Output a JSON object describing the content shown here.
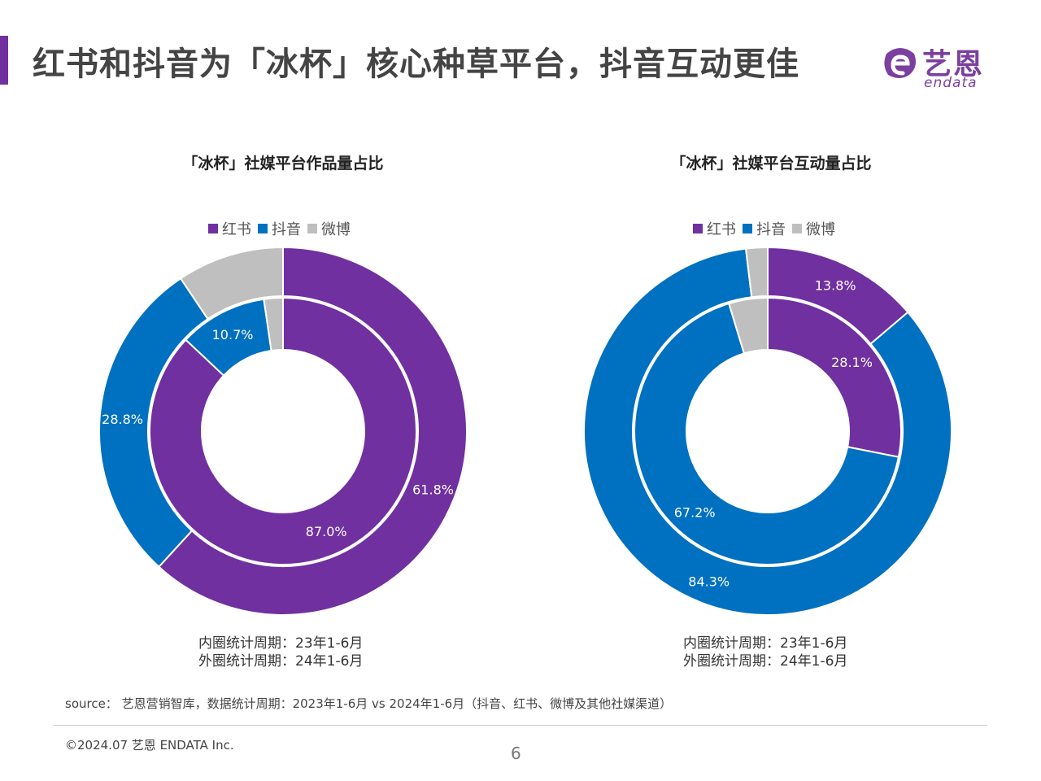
{
  "header": {
    "title": "红书和抖音为「冰杯」核心种草平台，抖音互动更佳",
    "accent_color": "#7030a0"
  },
  "logo": {
    "cn": "艺恩",
    "en": "endata",
    "color": "#7b3fa0"
  },
  "colors": {
    "红书": "#7030a0",
    "抖音": "#0070c0",
    "微博": "#bfbfbf"
  },
  "chart_data": [
    {
      "type": "donut",
      "title": "「冰杯」社媒平台作品量占比",
      "legend": [
        "红书",
        "抖音",
        "微博"
      ],
      "legend_position": "top",
      "series": [
        {
          "name": "内圈",
          "period": "23年1-6月",
          "values": {
            "红书": 87.0,
            "抖音": 10.7,
            "微博": 2.3
          },
          "labels": {
            "红书": "87.0%",
            "抖音": "10.7%"
          }
        },
        {
          "name": "外圈",
          "period": "24年1-6月",
          "values": {
            "红书": 61.8,
            "抖音": 28.8,
            "微博": 9.4
          },
          "labels": {
            "红书": "61.8%",
            "抖音": "28.8%"
          }
        }
      ],
      "period_notes": [
        "内圈统计周期：23年1-6月",
        "外圈统计周期：24年1-6月"
      ]
    },
    {
      "type": "donut",
      "title": "「冰杯」社媒平台互动量占比",
      "legend": [
        "红书",
        "抖音",
        "微博"
      ],
      "legend_position": "top",
      "series": [
        {
          "name": "内圈",
          "period": "23年1-6月",
          "values": {
            "红书": 28.1,
            "抖音": 67.2,
            "微博": 4.7
          },
          "labels": {
            "红书": "28.1%",
            "抖音": "67.2%"
          }
        },
        {
          "name": "外圈",
          "period": "24年1-6月",
          "values": {
            "红书": 13.8,
            "抖音": 84.3,
            "微博": 1.9
          },
          "labels": {
            "红书": "13.8%",
            "抖音": "84.3%"
          }
        }
      ],
      "period_notes": [
        "内圈统计周期：23年1-6月",
        "外圈统计周期：24年1-6月"
      ]
    }
  ],
  "footer": {
    "source": "source： 艺恩营销智库，数据统计周期：2023年1-6月 vs 2024年1-6月（抖音、红书、微博及其他社媒渠道）",
    "copyright": "©2024.07  艺恩 ENDATA Inc.",
    "page_number": "6"
  }
}
